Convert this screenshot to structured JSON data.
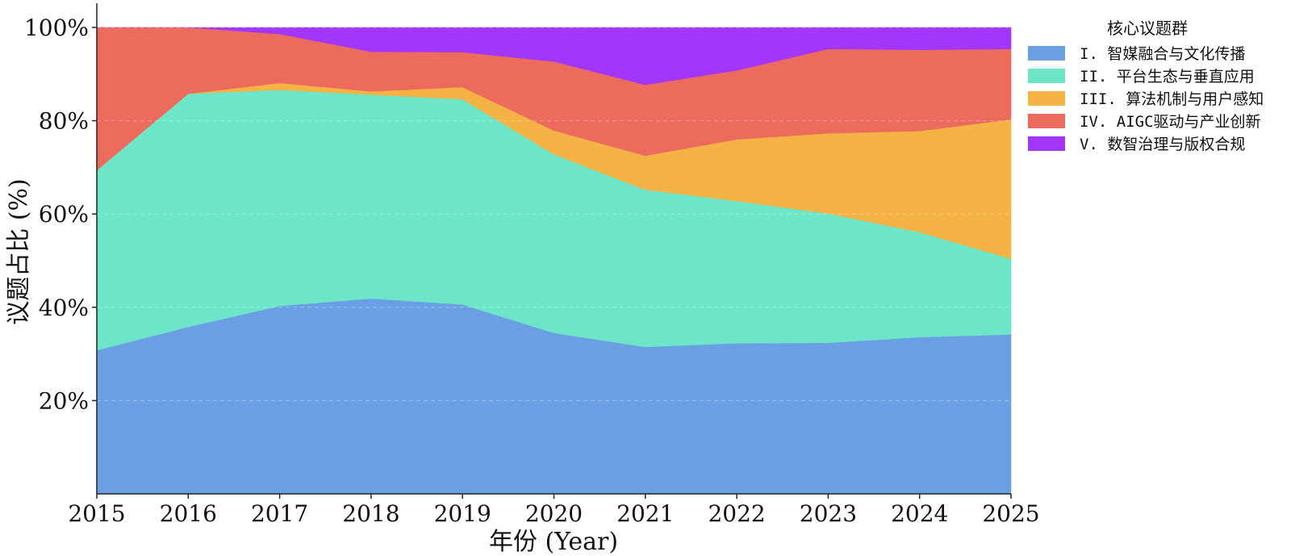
{
  "chart_data": {
    "type": "area",
    "stacked": true,
    "normalized": true,
    "title": "",
    "xlabel": "年份 (Year)",
    "ylabel": "议题占比 (%)",
    "x": [
      2015,
      2016,
      2017,
      2018,
      2019,
      2020,
      2021,
      2022,
      2023,
      2024,
      2025
    ],
    "x_tick_labels": [
      "2015",
      "2016",
      "2017",
      "2018",
      "2019",
      "2020",
      "2021",
      "2022",
      "2023",
      "2024",
      "2025"
    ],
    "ylim": [
      0,
      100
    ],
    "y_ticks": [
      20,
      40,
      60,
      80,
      100
    ],
    "y_tick_labels": [
      "20%",
      "40%",
      "60%",
      "80%",
      "100%"
    ],
    "grid": "horizontal dashed",
    "legend_title": "核心议题群",
    "legend_position": "top-right (outside)",
    "series": [
      {
        "name": "I. 智媒融合与文化传播",
        "color": "#6a9fe3",
        "values": [
          30.8,
          35.8,
          40.3,
          41.9,
          40.6,
          34.5,
          31.5,
          32.3,
          32.4,
          33.6,
          34.2
        ]
      },
      {
        "name": "II. 平台生态与垂直应用",
        "color": "#6ce5c9",
        "values": [
          38.6,
          50.0,
          46.3,
          43.7,
          44.0,
          38.3,
          33.7,
          30.5,
          27.7,
          22.5,
          16.2
        ]
      },
      {
        "name": "III. 算法机制与用户感知",
        "color": "#f5b245",
        "values": [
          0.0,
          0.0,
          1.5,
          0.7,
          2.6,
          5.1,
          7.3,
          13.2,
          17.2,
          21.7,
          29.9
        ]
      },
      {
        "name": "IV. AIGC驱动与产业创新",
        "color": "#ec6b5d",
        "values": [
          30.6,
          14.2,
          10.5,
          8.5,
          7.5,
          14.8,
          15.2,
          14.8,
          18.1,
          17.4,
          15.1
        ]
      },
      {
        "name": "V. 数智治理与版权合规",
        "color": "#a336fb",
        "values": [
          0.0,
          0.0,
          1.4,
          5.2,
          5.3,
          7.3,
          12.3,
          9.2,
          4.6,
          4.8,
          4.6
        ]
      }
    ]
  }
}
